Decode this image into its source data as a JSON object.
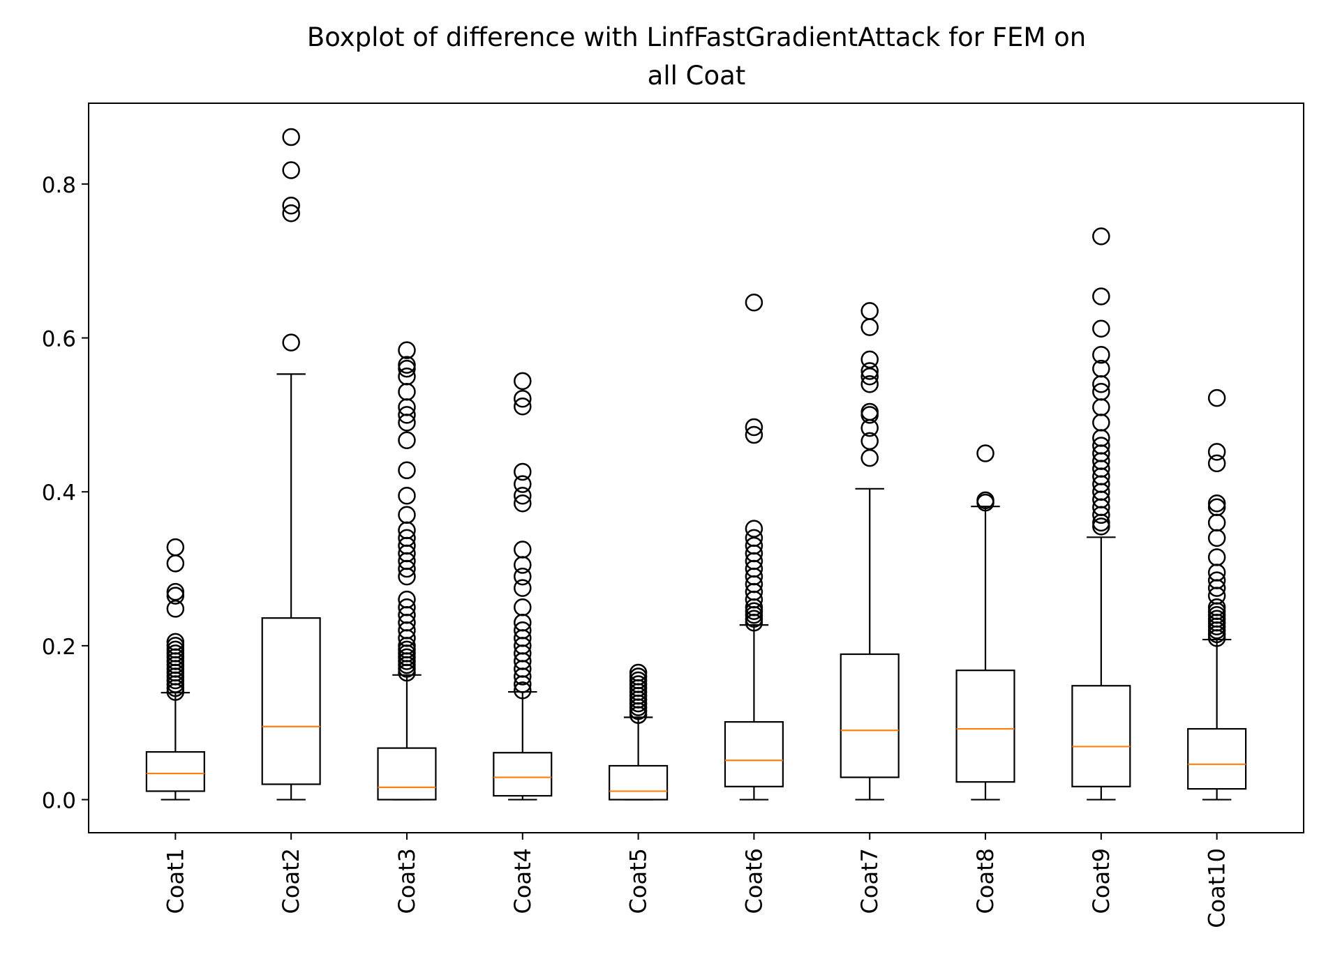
{
  "chart_data": {
    "type": "boxplot",
    "title": "Boxplot of difference with LinfFastGradientAttack for FEM on all Coat",
    "title_lines": [
      "Boxplot of difference with LinfFastGradientAttack for FEM on",
      "all Coat"
    ],
    "xlabel": "",
    "ylabel": "",
    "ylim": [
      -0.043,
      0.905
    ],
    "yticks": [
      0.0,
      0.2,
      0.4,
      0.6,
      0.8
    ],
    "ytick_labels": [
      "0.0",
      "0.2",
      "0.4",
      "0.6",
      "0.8"
    ],
    "grid": false,
    "colors": {
      "box": "#000000",
      "median": "#ff7f0e",
      "flier": "#000000"
    },
    "categories": [
      "Coat1",
      "Coat2",
      "Coat3",
      "Coat4",
      "Coat5",
      "Coat6",
      "Coat7",
      "Coat8",
      "Coat9",
      "Coat10"
    ],
    "boxes": [
      {
        "label": "Coat1",
        "whislo": 0.0,
        "q1": 0.011,
        "med": 0.034,
        "q3": 0.062,
        "whishi": 0.139,
        "fliers": [
          0.14,
          0.145,
          0.15,
          0.155,
          0.16,
          0.165,
          0.17,
          0.175,
          0.18,
          0.185,
          0.19,
          0.195,
          0.2,
          0.205,
          0.248,
          0.265,
          0.27,
          0.307,
          0.328
        ]
      },
      {
        "label": "Coat2",
        "whislo": 0.0,
        "q1": 0.02,
        "med": 0.095,
        "q3": 0.236,
        "whishi": 0.553,
        "fliers": [
          0.594,
          0.762,
          0.772,
          0.818,
          0.861
        ]
      },
      {
        "label": "Coat3",
        "whislo": 0.0,
        "q1": 0.0,
        "med": 0.016,
        "q3": 0.067,
        "whishi": 0.162,
        "fliers": [
          0.165,
          0.17,
          0.175,
          0.18,
          0.185,
          0.19,
          0.195,
          0.2,
          0.21,
          0.22,
          0.23,
          0.24,
          0.25,
          0.26,
          0.29,
          0.3,
          0.31,
          0.32,
          0.33,
          0.34,
          0.35,
          0.37,
          0.395,
          0.428,
          0.467,
          0.49,
          0.5,
          0.51,
          0.53,
          0.55,
          0.56,
          0.565,
          0.584
        ]
      },
      {
        "label": "Coat4",
        "whislo": 0.0,
        "q1": 0.005,
        "med": 0.029,
        "q3": 0.061,
        "whishi": 0.14,
        "fliers": [
          0.142,
          0.15,
          0.16,
          0.17,
          0.18,
          0.19,
          0.2,
          0.21,
          0.22,
          0.23,
          0.25,
          0.275,
          0.29,
          0.305,
          0.325,
          0.385,
          0.395,
          0.41,
          0.426,
          0.511,
          0.521,
          0.544
        ]
      },
      {
        "label": "Coat5",
        "whislo": 0.0,
        "q1": 0.0,
        "med": 0.011,
        "q3": 0.044,
        "whishi": 0.107,
        "fliers": [
          0.11,
          0.115,
          0.12,
          0.125,
          0.13,
          0.135,
          0.14,
          0.145,
          0.15,
          0.155,
          0.16,
          0.165
        ]
      },
      {
        "label": "Coat6",
        "whislo": 0.0,
        "q1": 0.017,
        "med": 0.051,
        "q3": 0.101,
        "whishi": 0.227,
        "fliers": [
          0.23,
          0.235,
          0.24,
          0.245,
          0.25,
          0.26,
          0.27,
          0.28,
          0.29,
          0.3,
          0.31,
          0.32,
          0.33,
          0.34,
          0.352,
          0.474,
          0.484,
          0.646
        ]
      },
      {
        "label": "Coat7",
        "whislo": 0.0,
        "q1": 0.029,
        "med": 0.09,
        "q3": 0.189,
        "whishi": 0.404,
        "fliers": [
          0.444,
          0.466,
          0.483,
          0.5,
          0.504,
          0.54,
          0.55,
          0.557,
          0.572,
          0.614,
          0.635
        ]
      },
      {
        "label": "Coat8",
        "whislo": 0.0,
        "q1": 0.023,
        "med": 0.092,
        "q3": 0.168,
        "whishi": 0.381,
        "fliers": [
          0.386,
          0.389,
          0.45
        ]
      },
      {
        "label": "Coat9",
        "whislo": 0.0,
        "q1": 0.017,
        "med": 0.069,
        "q3": 0.148,
        "whishi": 0.341,
        "fliers": [
          0.355,
          0.36,
          0.37,
          0.38,
          0.39,
          0.4,
          0.41,
          0.42,
          0.43,
          0.44,
          0.45,
          0.46,
          0.47,
          0.49,
          0.51,
          0.53,
          0.54,
          0.56,
          0.578,
          0.612,
          0.654,
          0.732
        ]
      },
      {
        "label": "Coat10",
        "whislo": 0.0,
        "q1": 0.014,
        "med": 0.046,
        "q3": 0.092,
        "whishi": 0.208,
        "fliers": [
          0.21,
          0.215,
          0.22,
          0.225,
          0.23,
          0.235,
          0.24,
          0.245,
          0.25,
          0.265,
          0.275,
          0.285,
          0.295,
          0.315,
          0.34,
          0.36,
          0.38,
          0.385,
          0.437,
          0.452,
          0.522
        ]
      }
    ]
  }
}
